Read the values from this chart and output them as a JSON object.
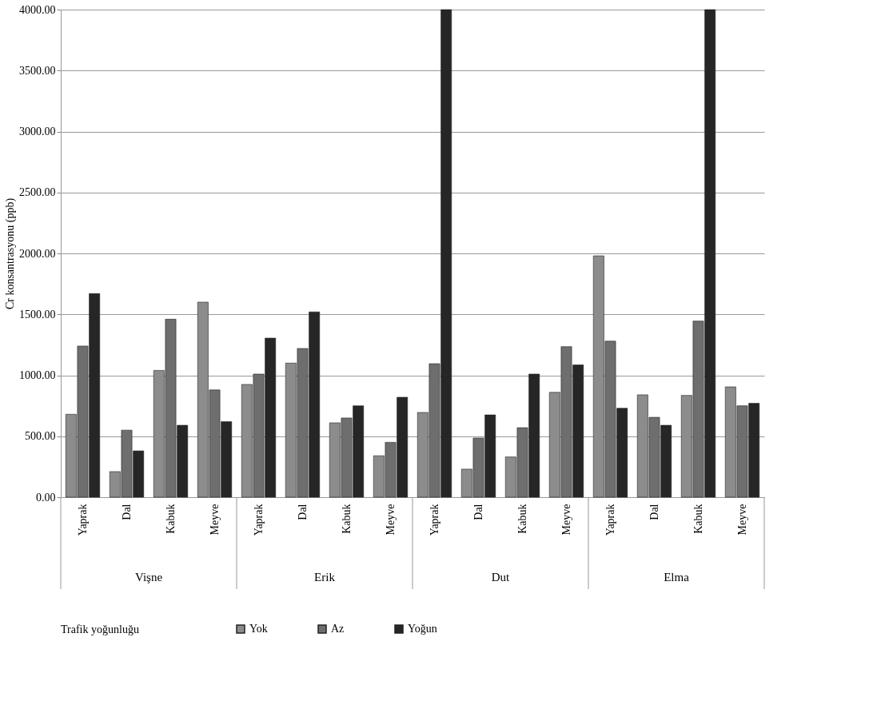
{
  "chart_data": {
    "type": "bar",
    "ylabel": "Cr  konsantrasyonu (ppb)",
    "legend_title": "Trafik yoğunluğu",
    "categories": [
      "Yaprak",
      "Dal",
      "Kabuk",
      "Meyve",
      "Yaprak",
      "Dal",
      "Kabuk",
      "Meyve",
      "Yaprak",
      "Dal",
      "Kabuk",
      "Meyve",
      "Yaprak",
      "Dal",
      "Kabuk",
      "Meyve"
    ],
    "annotations": [
      "Vişne",
      "Erik",
      "Dut",
      "Elma"
    ],
    "series": [
      {
        "name": "Yok",
        "color": "#8c8c8c",
        "values": [
          680,
          210,
          1040,
          1600,
          925,
          1100,
          610,
          340,
          695,
          230,
          330,
          860,
          1980,
          840,
          835,
          905
        ]
      },
      {
        "name": "Az",
        "color": "#6e6e6e",
        "values": [
          1240,
          550,
          1460,
          880,
          1010,
          1220,
          650,
          450,
          1095,
          485,
          570,
          1235,
          1280,
          655,
          1445,
          750
        ]
      },
      {
        "name": "Yoğun",
        "color": "#262626",
        "values": [
          1670,
          380,
          590,
          620,
          1305,
          1520,
          750,
          820,
          4000,
          675,
          1010,
          1085,
          730,
          590,
          4000,
          770
        ]
      }
    ],
    "ylim": [
      0,
      4000
    ],
    "yticks": [
      {
        "value": 0,
        "label": "0.00"
      },
      {
        "value": 500,
        "label": "500.00"
      },
      {
        "value": 1000,
        "label": "1000.00"
      },
      {
        "value": 1500,
        "label": "1500.00"
      },
      {
        "value": 2000,
        "label": "2000.00"
      },
      {
        "value": 2500,
        "label": "2500.00"
      },
      {
        "value": 3000,
        "label": "3000.00"
      },
      {
        "value": 3500,
        "label": "3500.00"
      },
      {
        "value": 4000,
        "label": "4000.00"
      }
    ],
    "grid": "y",
    "legend": "bottom"
  }
}
